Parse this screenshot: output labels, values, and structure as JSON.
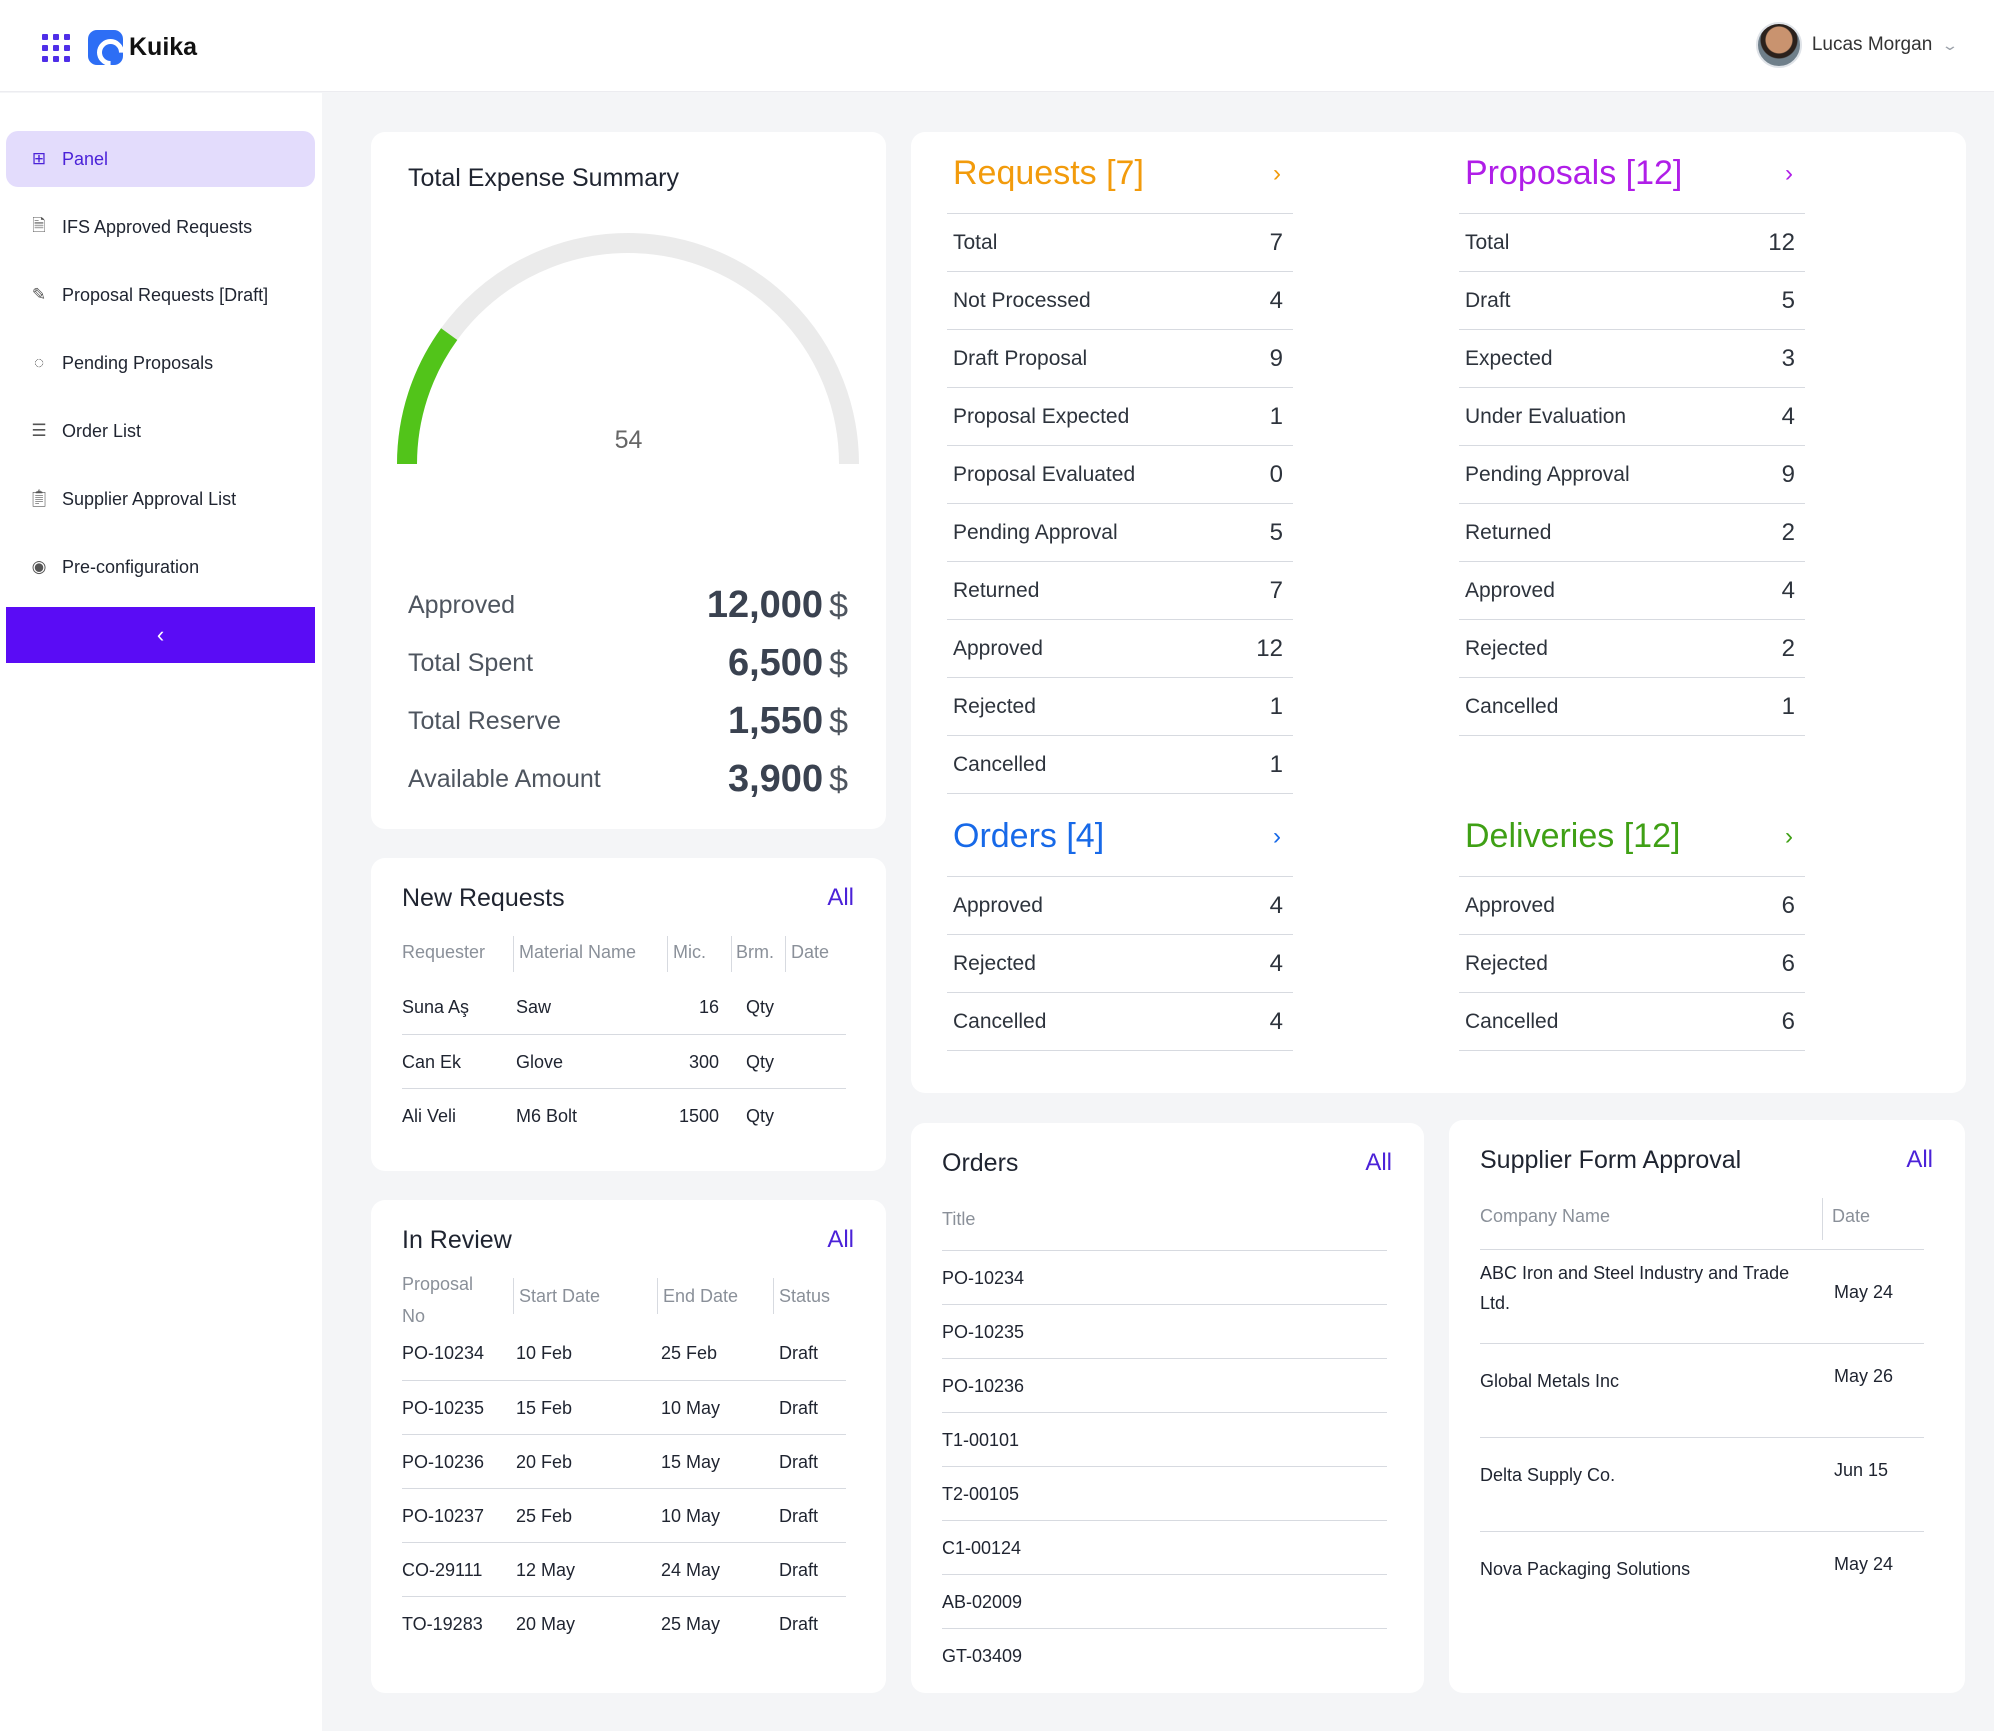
{
  "header": {
    "app_name": "Kuika",
    "user_name": "Lucas Morgan"
  },
  "sidebar": {
    "items": [
      {
        "label": "Panel",
        "icon": "grid-icon",
        "active": true
      },
      {
        "label": "IFS Approved Requests",
        "icon": "document-check-icon"
      },
      {
        "label": "Proposal Requests [Draft]",
        "icon": "pencil-icon"
      },
      {
        "label": "Pending Proposals",
        "icon": "clock-dashed-icon"
      },
      {
        "label": "Order List",
        "icon": "list-icon"
      },
      {
        "label": "Supplier Approval List",
        "icon": "clipboard-icon"
      },
      {
        "label": "Pre-configuration",
        "icon": "eye-icon"
      }
    ],
    "collapse_label": "‹"
  },
  "expense": {
    "title": "Total Expense Summary",
    "gauge_value": "54",
    "gauge_fraction": 0.2,
    "gauge_color": "#52c41a",
    "currency": "$",
    "rows": [
      {
        "label": "Approved",
        "value": "12,000"
      },
      {
        "label": "Total Spent",
        "value": "6,500"
      },
      {
        "label": "Total Reserve",
        "value": "1,550"
      },
      {
        "label": "Available Amount",
        "value": "3,900"
      }
    ]
  },
  "requests": {
    "title": "Requests [7]",
    "color": "#f29b0c",
    "rows": [
      {
        "label": "Total",
        "value": "7"
      },
      {
        "label": "Not Processed",
        "value": "4"
      },
      {
        "label": "Draft Proposal",
        "value": "9"
      },
      {
        "label": "Proposal Expected",
        "value": "1"
      },
      {
        "label": "Proposal Evaluated",
        "value": "0"
      },
      {
        "label": "Pending Approval",
        "value": "5"
      },
      {
        "label": "Returned",
        "value": "7"
      },
      {
        "label": "Approved",
        "value": "12"
      },
      {
        "label": "Rejected",
        "value": "1"
      },
      {
        "label": "Cancelled",
        "value": "1"
      }
    ]
  },
  "proposals": {
    "title": "Proposals [12]",
    "color": "#b01ee8",
    "rows": [
      {
        "label": "Total",
        "value": "12"
      },
      {
        "label": "Draft",
        "value": "5"
      },
      {
        "label": "Expected",
        "value": "3"
      },
      {
        "label": "Under Evaluation",
        "value": "4"
      },
      {
        "label": "Pending Approval",
        "value": "9"
      },
      {
        "label": "Returned",
        "value": "2"
      },
      {
        "label": "Approved",
        "value": "4"
      },
      {
        "label": "Rejected",
        "value": "2"
      },
      {
        "label": "Cancelled",
        "value": "1"
      }
    ]
  },
  "orders_stats": {
    "title": "Orders [4]",
    "color": "#1769e8",
    "rows": [
      {
        "label": "Approved",
        "value": "4"
      },
      {
        "label": "Rejected",
        "value": "4"
      },
      {
        "label": "Cancelled",
        "value": "4"
      }
    ]
  },
  "deliveries": {
    "title": "Deliveries [12]",
    "color": "#3fa015",
    "rows": [
      {
        "label": "Approved",
        "value": "6"
      },
      {
        "label": "Rejected",
        "value": "6"
      },
      {
        "label": "Cancelled",
        "value": "6"
      }
    ]
  },
  "new_requests": {
    "title": "New Requests",
    "all_label": "All",
    "columns": [
      "Requester",
      "Material Name",
      "Mic.",
      "Brm.",
      "Date"
    ],
    "rows": [
      {
        "requester": "Suna Aş",
        "material": "Saw",
        "qty": "16",
        "unit": "Qty"
      },
      {
        "requester": "Can Ek",
        "material": "Glove",
        "qty": "300",
        "unit": "Qty"
      },
      {
        "requester": "Ali Veli",
        "material": "M6 Bolt",
        "qty": "1500",
        "unit": "Qty"
      }
    ]
  },
  "in_review": {
    "title": "In Review",
    "all_label": "All",
    "columns": [
      "Proposal No",
      "Start Date",
      "End Date",
      "Status"
    ],
    "rows": [
      {
        "no": "PO-10234",
        "start": "10 Feb",
        "end": "25 Feb",
        "status": "Draft"
      },
      {
        "no": "PO-10235",
        "start": "15 Feb",
        "end": "10 May",
        "status": "Draft"
      },
      {
        "no": "PO-10236",
        "start": "20 Feb",
        "end": "15 May",
        "status": "Draft"
      },
      {
        "no": "PO-10237",
        "start": "25 Feb",
        "end": "10 May",
        "status": "Draft"
      },
      {
        "no": "CO-29111",
        "start": "12 May",
        "end": "24 May",
        "status": "Draft"
      },
      {
        "no": "TO-19283",
        "start": "20 May",
        "end": "25 May",
        "status": "Draft"
      }
    ]
  },
  "orders_list": {
    "title": "Orders",
    "all_label": "All",
    "column": "Title",
    "rows": [
      "PO-10234",
      "PO-10235",
      "PO-10236",
      "T1-00101",
      "T2-00105",
      "C1-00124",
      "AB-02009",
      "GT-03409"
    ]
  },
  "supplier": {
    "title": "Supplier Form Approval",
    "all_label": "All",
    "columns": [
      "Company Name",
      "Date"
    ],
    "rows": [
      {
        "company": "ABC Iron and Steel Industry and Trade Ltd.",
        "date": "May 24"
      },
      {
        "company": "Global Metals Inc",
        "date": "May 26"
      },
      {
        "company": "Delta Supply Co.",
        "date": "Jun 15"
      },
      {
        "company": "Nova Packaging Solutions",
        "date": "May 24"
      }
    ]
  }
}
